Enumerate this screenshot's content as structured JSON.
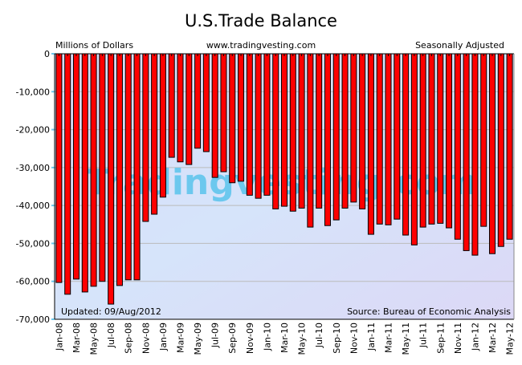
{
  "chart_data": {
    "type": "bar",
    "title": "U.S.Trade Balance",
    "ylabel": "Millions of Dollars",
    "website": "www.tradingvesting.com",
    "adjustment": "Seasonally Adjusted",
    "watermark": "Tradingvesting.com",
    "updated": "Updated: 09/Aug/2012",
    "source": "Source: Bureau of Economic Analysis",
    "ylim": [
      -70000,
      0
    ],
    "yticks": [
      0,
      -10000,
      -20000,
      -30000,
      -40000,
      -50000,
      -60000,
      -70000
    ],
    "ytick_labels": [
      "0",
      "-10,000",
      "-20,000",
      "-30,000",
      "-40,000",
      "-50,000",
      "-60,000",
      "-70,000"
    ],
    "grid": true,
    "bar_color": "#ff0000",
    "categories": [
      "Jan-08",
      "Feb-08",
      "Mar-08",
      "Apr-08",
      "May-08",
      "Jun-08",
      "Jul-08",
      "Aug-08",
      "Sep-08",
      "Oct-08",
      "Nov-08",
      "Dec-08",
      "Jan-09",
      "Feb-09",
      "Mar-09",
      "Apr-09",
      "May-09",
      "Jun-09",
      "Jul-09",
      "Aug-09",
      "Sep-09",
      "Oct-09",
      "Nov-09",
      "Dec-09",
      "Jan-10",
      "Feb-10",
      "Mar-10",
      "Apr-10",
      "May-10",
      "Jun-10",
      "Jul-10",
      "Aug-10",
      "Sep-10",
      "Oct-10",
      "Nov-10",
      "Dec-10",
      "Jan-11",
      "Feb-11",
      "Mar-11",
      "Apr-11",
      "May-11",
      "Jun-11",
      "Jul-11",
      "Aug-11",
      "Sep-11",
      "Oct-11",
      "Nov-11",
      "Dec-11",
      "Jan-12",
      "Feb-12",
      "Mar-12",
      "Apr-12",
      "May-12"
    ],
    "values": [
      -60300,
      -63400,
      -59400,
      -62800,
      -61300,
      -60000,
      -66000,
      -61100,
      -59600,
      -59600,
      -44200,
      -42300,
      -37800,
      -27300,
      -28500,
      -29200,
      -24900,
      -25800,
      -32600,
      -31100,
      -34000,
      -33600,
      -37300,
      -38100,
      -37300,
      -40900,
      -40200,
      -41500,
      -40700,
      -45700,
      -40700,
      -45300,
      -43800,
      -40700,
      -39100,
      -40900,
      -47600,
      -44900,
      -45100,
      -43600,
      -47800,
      -50400,
      -45700,
      -44900,
      -44700,
      -45900,
      -48900,
      -51900,
      -53100,
      -45500,
      -52700,
      -50800,
      -48900
    ]
  }
}
